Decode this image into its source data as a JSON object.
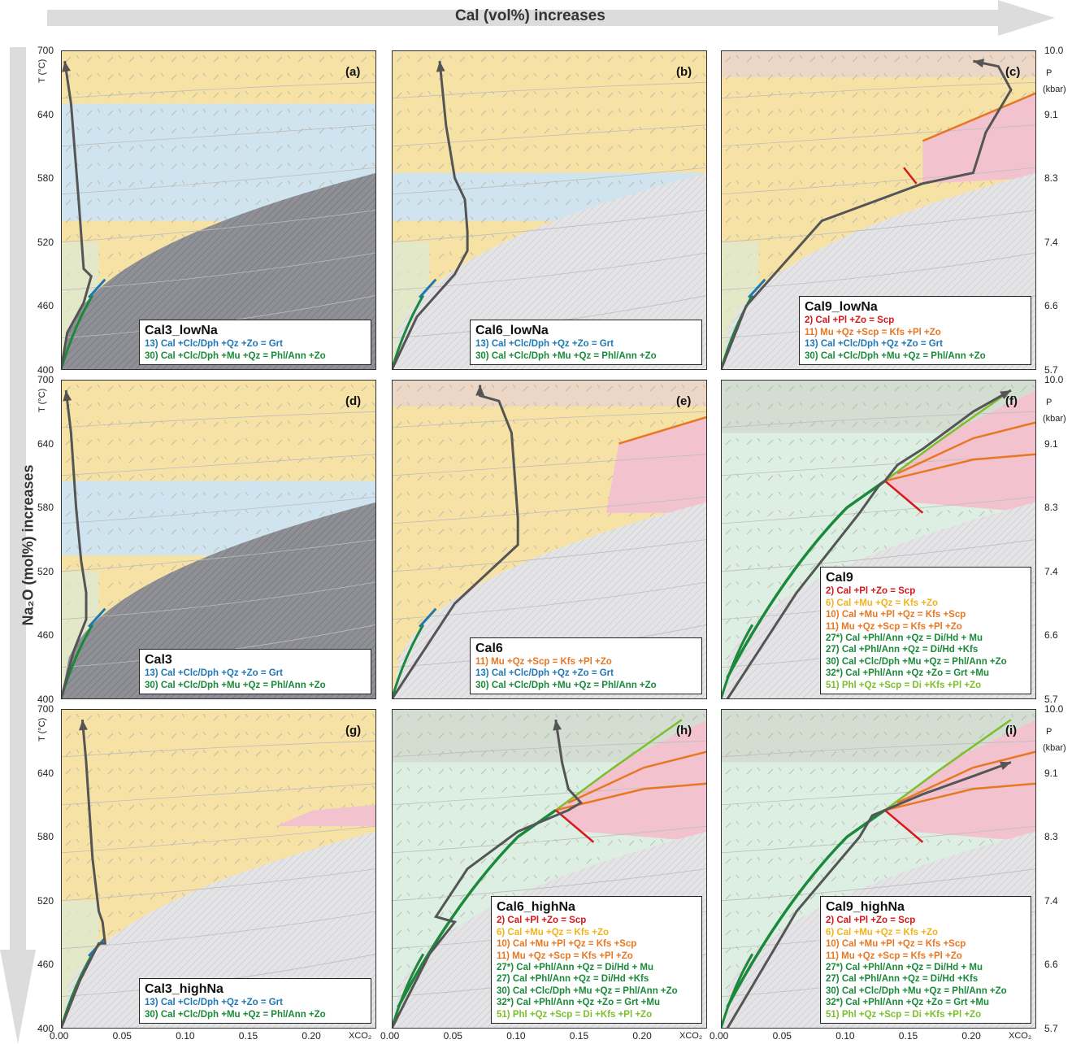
{
  "top_arrow_label": "Cal (vol%) increases",
  "left_arrow_label": "Na₂O (mol%) increases",
  "t_axis_label": "T (°C)",
  "p_axis_label_p": "P",
  "p_axis_label_unit": "(kbar)",
  "x_axis_label": "XCO₂",
  "colors": {
    "tan": "#f7e2a6",
    "blue": "#cfe4ee",
    "pink": "#f2c3cf",
    "green": "#dcead1",
    "dark_hatch": "#8c8c90",
    "light_grey": "#e2e2e5",
    "path": "#555555",
    "r2": "#d7191c",
    "r6": "#f2b31c",
    "r10": "#e87722",
    "r11": "#e87722",
    "r13": "#1f78b4",
    "r27": "#1a8a3a",
    "r30": "#1a8a3a",
    "r51": "#7cbf2c"
  },
  "chart_data": {
    "type": "line",
    "xlabel": "XCO₂",
    "ylabel": "T (°C)",
    "y2label": "P (kbar)",
    "xlim": [
      0,
      0.25
    ],
    "ylim": [
      400,
      700
    ],
    "x_ticks": [
      "0.00",
      "0.05",
      "0.10",
      "0.15",
      "0.20"
    ],
    "y_ticks": [
      "400",
      "460",
      "520",
      "580",
      "640",
      "700"
    ],
    "p_ticks": [
      "5.7",
      "6.6",
      "7.4",
      "8.3",
      "9.1",
      "10.0"
    ],
    "panels": [
      {
        "id": "(a)",
        "title": "Cal3_lowNa",
        "legend": [
          {
            "r": "13",
            "text": "13) Cal +Clc/Dph +Qz +Zo = Grt"
          },
          {
            "r": "30",
            "text": "30) Cal +Clc/Dph +Mu +Qz = Phl/Ann +Zo"
          }
        ],
        "path": [
          [
            0.0,
            400
          ],
          [
            0.005,
            435
          ],
          [
            0.018,
            463
          ],
          [
            0.024,
            488
          ],
          [
            0.018,
            495
          ],
          [
            0.014,
            560
          ],
          [
            0.012,
            590
          ],
          [
            0.008,
            650
          ],
          [
            0.003,
            690
          ]
        ]
      },
      {
        "id": "(b)",
        "title": "Cal6_lowNa",
        "legend": [
          {
            "r": "13",
            "text": "13) Cal +Clc/Dph +Qz +Zo = Grt"
          },
          {
            "r": "30",
            "text": "30) Cal +Clc/Dph +Mu +Qz = Phl/Ann +Zo"
          }
        ],
        "path": [
          [
            0.0,
            400
          ],
          [
            0.02,
            450
          ],
          [
            0.05,
            490
          ],
          [
            0.06,
            512
          ],
          [
            0.06,
            520
          ],
          [
            0.06,
            530
          ],
          [
            0.058,
            560
          ],
          [
            0.05,
            580
          ],
          [
            0.043,
            630
          ],
          [
            0.038,
            690
          ]
        ]
      },
      {
        "id": "(c)",
        "title": "Cal9_lowNa",
        "legend": [
          {
            "r": "2",
            "text": "2) Cal +Pl +Zo = Scp"
          },
          {
            "r": "11",
            "text": "11) Mu +Qz +Scp = Kfs +Pl +Zo"
          },
          {
            "r": "13",
            "text": "13) Cal +Clc/Dph +Qz +Zo = Grt"
          },
          {
            "r": "30",
            "text": "30) Cal +Clc/Dph +Mu +Qz = Phl/Ann +Zo"
          }
        ],
        "path": [
          [
            0.0,
            400
          ],
          [
            0.02,
            460
          ],
          [
            0.08,
            540
          ],
          [
            0.16,
            575
          ],
          [
            0.2,
            585
          ],
          [
            0.21,
            623
          ],
          [
            0.23,
            663
          ],
          [
            0.22,
            685
          ],
          [
            0.2,
            690
          ]
        ]
      },
      {
        "id": "(d)",
        "title": "Cal3",
        "legend": [
          {
            "r": "13",
            "text": "13) Cal +Clc/Dph +Qz +Zo = Grt"
          },
          {
            "r": "30",
            "text": "30) Cal +Clc/Dph +Mu +Qz = Phl/Ann +Zo"
          }
        ],
        "path": [
          [
            0.0,
            400
          ],
          [
            0.01,
            445
          ],
          [
            0.02,
            475
          ],
          [
            0.02,
            500
          ],
          [
            0.016,
            530
          ],
          [
            0.012,
            580
          ],
          [
            0.008,
            650
          ],
          [
            0.004,
            690
          ]
        ]
      },
      {
        "id": "(e)",
        "title": "Cal6",
        "legend": [
          {
            "r": "11",
            "text": "11) Mu +Qz +Scp = Kfs +Pl +Zo"
          },
          {
            "r": "13",
            "text": "13) Cal +Clc/Dph +Qz +Zo = Grt"
          },
          {
            "r": "30",
            "text": "30) Cal +Clc/Dph +Mu +Qz = Phl/Ann +Zo"
          }
        ],
        "path": [
          [
            0.0,
            400
          ],
          [
            0.05,
            490
          ],
          [
            0.1,
            545
          ],
          [
            0.1,
            570
          ],
          [
            0.095,
            650
          ],
          [
            0.085,
            680
          ],
          [
            0.07,
            685
          ],
          [
            0.07,
            695
          ]
        ]
      },
      {
        "id": "(f)",
        "title": "Cal9",
        "legend": [
          {
            "r": "2",
            "text": "2) Cal +Pl +Zo = Scp"
          },
          {
            "r": "6",
            "text": "6) Cal +Mu +Qz = Kfs +Zo"
          },
          {
            "r": "10",
            "text": "10) Cal +Mu +Pl +Qz = Kfs +Scp"
          },
          {
            "r": "11",
            "text": "11) Mu +Qz +Scp = Kfs +Pl +Zo"
          },
          {
            "r": "27*",
            "text": "27*) Cal +Phl/Ann +Qz = Di/Hd + Mu"
          },
          {
            "r": "27",
            "text": "27) Cal +Phl/Ann +Qz = Di/Hd +Kfs"
          },
          {
            "r": "30",
            "text": "30) Cal +Clc/Dph +Mu +Qz = Phl/Ann +Zo"
          },
          {
            "r": "32*",
            "text": "32*) Cal +Phl/Ann +Qz +Zo = Grt +Mu"
          },
          {
            "r": "51",
            "text": "51) Phl +Qz +Scp = Di +Kfs +Pl +Zo"
          }
        ],
        "path": [
          [
            0.005,
            400
          ],
          [
            0.06,
            500
          ],
          [
            0.11,
            575
          ],
          [
            0.125,
            600
          ],
          [
            0.13,
            605
          ],
          [
            0.14,
            620
          ],
          [
            0.16,
            635
          ],
          [
            0.2,
            670
          ],
          [
            0.23,
            690
          ]
        ]
      },
      {
        "id": "(g)",
        "title": "Cal3_highNa",
        "legend": [
          {
            "r": "13",
            "text": "13) Cal +Clc/Dph +Qz +Zo = Grt"
          },
          {
            "r": "30",
            "text": "30) Cal +Clc/Dph +Mu +Qz = Phl/Ann +Zo"
          }
        ],
        "path": [
          [
            0.0,
            400
          ],
          [
            0.015,
            445
          ],
          [
            0.03,
            480
          ],
          [
            0.035,
            480
          ],
          [
            0.033,
            500
          ],
          [
            0.03,
            510
          ],
          [
            0.025,
            560
          ],
          [
            0.02,
            650
          ],
          [
            0.017,
            690
          ]
        ]
      },
      {
        "id": "(h)",
        "title": "Cal6_highNa",
        "legend": [
          {
            "r": "2",
            "text": "2) Cal +Pl +Zo = Scp"
          },
          {
            "r": "6",
            "text": "6) Cal +Mu +Qz = Kfs +Zo"
          },
          {
            "r": "10",
            "text": "10) Cal +Mu +Pl +Qz = Kfs +Scp"
          },
          {
            "r": "11",
            "text": "11) Mu +Qz +Scp = Kfs +Pl +Zo"
          },
          {
            "r": "27*",
            "text": "27*) Cal +Phl/Ann +Qz = Di/Hd + Mu"
          },
          {
            "r": "27",
            "text": "27) Cal +Phl/Ann +Qz = Di/Hd +Kfs"
          },
          {
            "r": "30",
            "text": "30) Cal +Clc/Dph +Mu +Qz = Phl/Ann +Zo"
          },
          {
            "r": "32*",
            "text": "32*) Cal +Phl/Ann +Qz +Zo = Grt +Mu"
          },
          {
            "r": "51",
            "text": "51) Phl +Qz +Scp = Di +Kfs +Pl +Zo"
          }
        ],
        "path": [
          [
            0.0,
            400
          ],
          [
            0.03,
            470
          ],
          [
            0.05,
            500
          ],
          [
            0.035,
            505
          ],
          [
            0.06,
            550
          ],
          [
            0.1,
            585
          ],
          [
            0.14,
            605
          ],
          [
            0.15,
            612
          ],
          [
            0.14,
            625
          ],
          [
            0.135,
            650
          ],
          [
            0.13,
            690
          ]
        ]
      },
      {
        "id": "(i)",
        "title": "Cal9_highNa",
        "legend": [
          {
            "r": "2",
            "text": "2) Cal +Pl +Zo = Scp"
          },
          {
            "r": "6",
            "text": "6) Cal +Mu +Qz = Kfs +Zo"
          },
          {
            "r": "10",
            "text": "10) Cal +Mu +Pl +Qz = Kfs +Scp"
          },
          {
            "r": "11",
            "text": "11) Mu +Qz +Scp = Kfs +Pl +Zo"
          },
          {
            "r": "27*",
            "text": "27*) Cal +Phl/Ann +Qz = Di/Hd + Mu"
          },
          {
            "r": "27",
            "text": "27) Cal +Phl/Ann +Qz = Di/Hd +Kfs"
          },
          {
            "r": "30",
            "text": "30) Cal +Clc/Dph +Mu +Qz = Phl/Ann +Zo"
          },
          {
            "r": "32*",
            "text": "32*) Cal +Phl/Ann +Qz +Zo = Grt +Mu"
          },
          {
            "r": "51",
            "text": "51) Phl +Qz +Scp = Di +Kfs +Pl +Zo"
          }
        ],
        "path": [
          [
            0.005,
            400
          ],
          [
            0.06,
            510
          ],
          [
            0.11,
            580
          ],
          [
            0.12,
            600
          ],
          [
            0.13,
            605
          ],
          [
            0.16,
            620
          ],
          [
            0.2,
            637
          ],
          [
            0.23,
            650
          ]
        ]
      }
    ]
  }
}
